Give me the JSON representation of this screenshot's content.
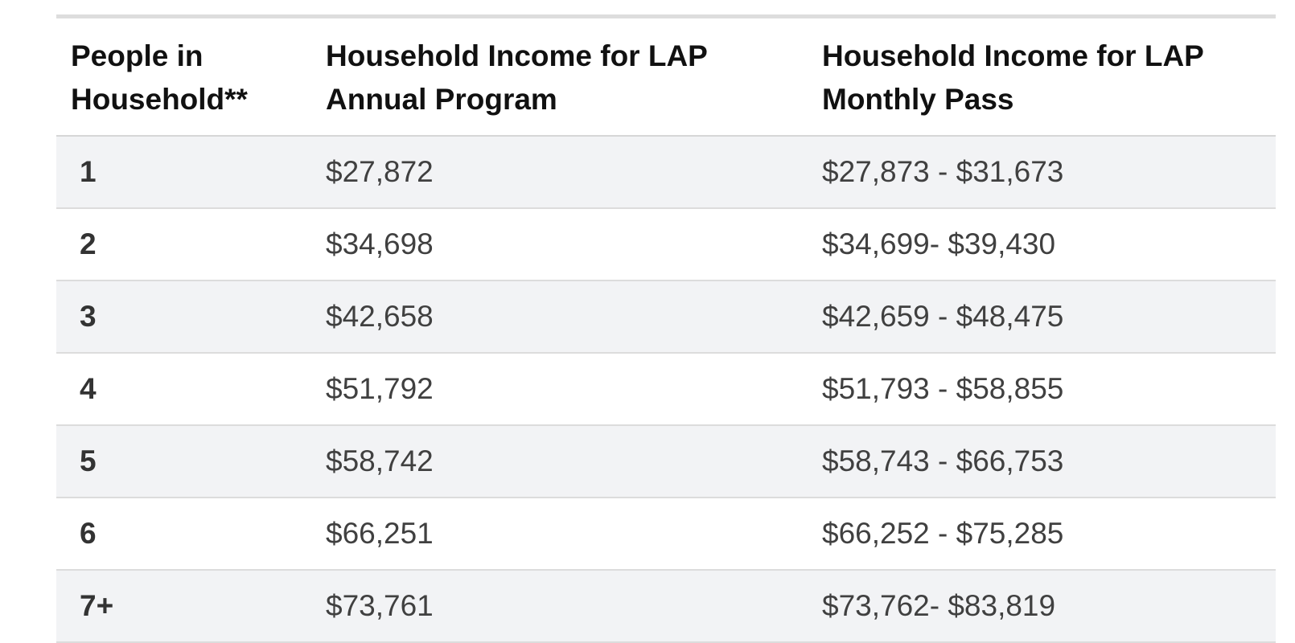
{
  "table": {
    "headers": [
      "People in Household**",
      "Household Income for LAP Annual Program",
      "Household Income for LAP Monthly Pass"
    ],
    "rows": [
      [
        "1",
        "$27,872",
        "$27,873 - $31,673"
      ],
      [
        "2",
        "$34,698",
        "$34,699- $39,430"
      ],
      [
        "3",
        "$42,658",
        "$42,659 - $48,475"
      ],
      [
        "4",
        "$51,792",
        "$51,793 - $58,855"
      ],
      [
        "5",
        "$58,742",
        "$58,743 - $66,753"
      ],
      [
        "6",
        "$66,251",
        "$66,252 - $75,285"
      ],
      [
        "7+",
        "$73,761",
        "$73,762- $83,819"
      ]
    ]
  },
  "colors": {
    "stripe": "#f2f3f5",
    "rule": "#dddddd"
  }
}
